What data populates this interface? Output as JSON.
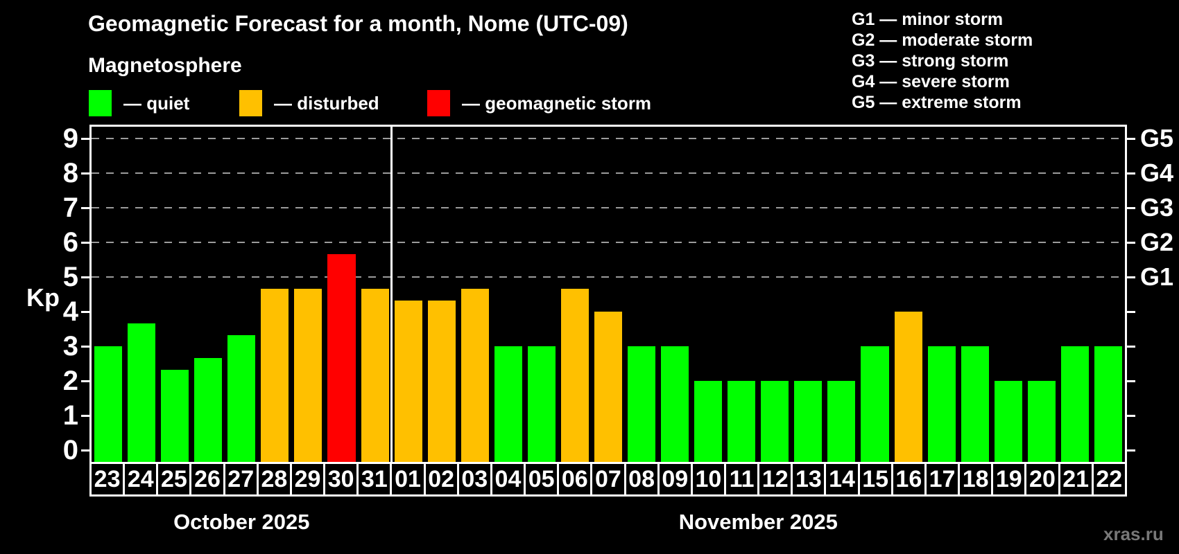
{
  "watermark": "xras.ru",
  "chart_data": {
    "type": "bar",
    "title": "Geomagnetic Forecast for a month, Nome (UTC-09)",
    "subtitle": "Magnetosphere",
    "ylabel": "Kp",
    "ylim": [
      0,
      9.35
    ],
    "yticks": [
      0,
      1,
      2,
      3,
      4,
      5,
      6,
      7,
      8,
      9
    ],
    "grid": "dashed horizontal lines at Kp 5-9 only",
    "gridline_levels": [
      5,
      6,
      7,
      8,
      9
    ],
    "legend_position": "top-left",
    "legend": [
      {
        "status": "quiet",
        "label": "— quiet",
        "color": "#00ff00"
      },
      {
        "status": "disturbed",
        "label": "— disturbed",
        "color": "#ffc000"
      },
      {
        "status": "storm",
        "label": "— geomagnetic storm",
        "color": "#ff0000"
      }
    ],
    "storm_scale": [
      "G1 — minor storm",
      "G2 — moderate storm",
      "G3 — strong storm",
      "G4 — severe storm",
      "G5 — extreme storm"
    ],
    "right_axis": [
      {
        "kp": 5,
        "label": "G1"
      },
      {
        "kp": 6,
        "label": "G2"
      },
      {
        "kp": 7,
        "label": "G3"
      },
      {
        "kp": 8,
        "label": "G4"
      },
      {
        "kp": 9,
        "label": "G5"
      }
    ],
    "status_colors": {
      "quiet": "#00ff00",
      "disturbed": "#ffc000",
      "storm": "#ff0000"
    },
    "months": [
      {
        "label": "October 2025",
        "days": [
          "23",
          "24",
          "25",
          "26",
          "27",
          "28",
          "29",
          "30",
          "31"
        ]
      },
      {
        "label": "November 2025",
        "days": [
          "01",
          "02",
          "03",
          "04",
          "05",
          "06",
          "07",
          "08",
          "09",
          "10",
          "11",
          "12",
          "13",
          "14",
          "15",
          "16",
          "17",
          "18",
          "19",
          "20",
          "21",
          "22"
        ]
      }
    ],
    "series": [
      {
        "name": "Kp forecast",
        "points": [
          {
            "day": "23",
            "kp": 3.0,
            "status": "quiet"
          },
          {
            "day": "24",
            "kp": 3.67,
            "status": "quiet"
          },
          {
            "day": "25",
            "kp": 2.33,
            "status": "quiet"
          },
          {
            "day": "26",
            "kp": 2.67,
            "status": "quiet"
          },
          {
            "day": "27",
            "kp": 3.33,
            "status": "quiet"
          },
          {
            "day": "28",
            "kp": 4.67,
            "status": "disturbed"
          },
          {
            "day": "29",
            "kp": 4.67,
            "status": "disturbed"
          },
          {
            "day": "30",
            "kp": 5.67,
            "status": "storm"
          },
          {
            "day": "31",
            "kp": 4.67,
            "status": "disturbed"
          },
          {
            "day": "01",
            "kp": 4.33,
            "status": "disturbed"
          },
          {
            "day": "02",
            "kp": 4.33,
            "status": "disturbed"
          },
          {
            "day": "03",
            "kp": 4.67,
            "status": "disturbed"
          },
          {
            "day": "04",
            "kp": 3.0,
            "status": "quiet"
          },
          {
            "day": "05",
            "kp": 3.0,
            "status": "quiet"
          },
          {
            "day": "06",
            "kp": 4.67,
            "status": "disturbed"
          },
          {
            "day": "07",
            "kp": 4.0,
            "status": "disturbed"
          },
          {
            "day": "08",
            "kp": 3.0,
            "status": "quiet"
          },
          {
            "day": "09",
            "kp": 3.0,
            "status": "quiet"
          },
          {
            "day": "10",
            "kp": 2.0,
            "status": "quiet"
          },
          {
            "day": "11",
            "kp": 2.0,
            "status": "quiet"
          },
          {
            "day": "12",
            "kp": 2.0,
            "status": "quiet"
          },
          {
            "day": "13",
            "kp": 2.0,
            "status": "quiet"
          },
          {
            "day": "14",
            "kp": 2.0,
            "status": "quiet"
          },
          {
            "day": "15",
            "kp": 3.0,
            "status": "quiet"
          },
          {
            "day": "16",
            "kp": 4.0,
            "status": "disturbed"
          },
          {
            "day": "17",
            "kp": 3.0,
            "status": "quiet"
          },
          {
            "day": "18",
            "kp": 3.0,
            "status": "quiet"
          },
          {
            "day": "19",
            "kp": 2.0,
            "status": "quiet"
          },
          {
            "day": "20",
            "kp": 2.0,
            "status": "quiet"
          },
          {
            "day": "21",
            "kp": 3.0,
            "status": "quiet"
          },
          {
            "day": "22",
            "kp": 3.0,
            "status": "quiet"
          }
        ]
      }
    ]
  }
}
